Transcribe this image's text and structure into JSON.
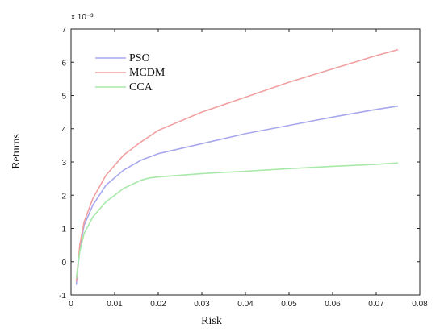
{
  "chart_data": {
    "type": "line",
    "xlabel": "Risk",
    "ylabel": "Returns",
    "y_multiplier_label": "x 10⁻³",
    "xlim": [
      0,
      0.08
    ],
    "ylim": [
      -1,
      7
    ],
    "x_ticks": [
      "0",
      "0.01",
      "0.02",
      "0.03",
      "0.04",
      "0.05",
      "0.06",
      "0.07",
      "0.08"
    ],
    "y_ticks": [
      "-1",
      "0",
      "1",
      "2",
      "3",
      "4",
      "5",
      "6",
      "7"
    ],
    "grid": false,
    "legend_position": "top-left",
    "series": [
      {
        "name": "PSO",
        "color": "#a8a8ee",
        "x": [
          0.0012,
          0.002,
          0.003,
          0.005,
          0.008,
          0.012,
          0.016,
          0.02,
          0.03,
          0.04,
          0.05,
          0.06,
          0.07,
          0.075
        ],
        "y": [
          -0.7,
          0.4,
          1.1,
          1.7,
          2.3,
          2.75,
          3.05,
          3.25,
          3.55,
          3.85,
          4.1,
          4.35,
          4.58,
          4.68
        ]
      },
      {
        "name": "MCDM",
        "color": "#f0a0a0",
        "x": [
          0.0012,
          0.002,
          0.003,
          0.005,
          0.008,
          0.012,
          0.016,
          0.02,
          0.03,
          0.04,
          0.05,
          0.06,
          0.07,
          0.075
        ],
        "y": [
          -0.6,
          0.5,
          1.2,
          1.9,
          2.6,
          3.2,
          3.6,
          3.95,
          4.5,
          4.95,
          5.4,
          5.8,
          6.2,
          6.38
        ]
      },
      {
        "name": "CCA",
        "color": "#a8e8a8",
        "x": [
          0.0012,
          0.002,
          0.003,
          0.005,
          0.008,
          0.012,
          0.016,
          0.018,
          0.02,
          0.03,
          0.04,
          0.05,
          0.06,
          0.07,
          0.075
        ],
        "y": [
          -0.5,
          0.3,
          0.85,
          1.35,
          1.8,
          2.2,
          2.45,
          2.52,
          2.55,
          2.65,
          2.72,
          2.8,
          2.87,
          2.93,
          2.97
        ]
      }
    ]
  }
}
